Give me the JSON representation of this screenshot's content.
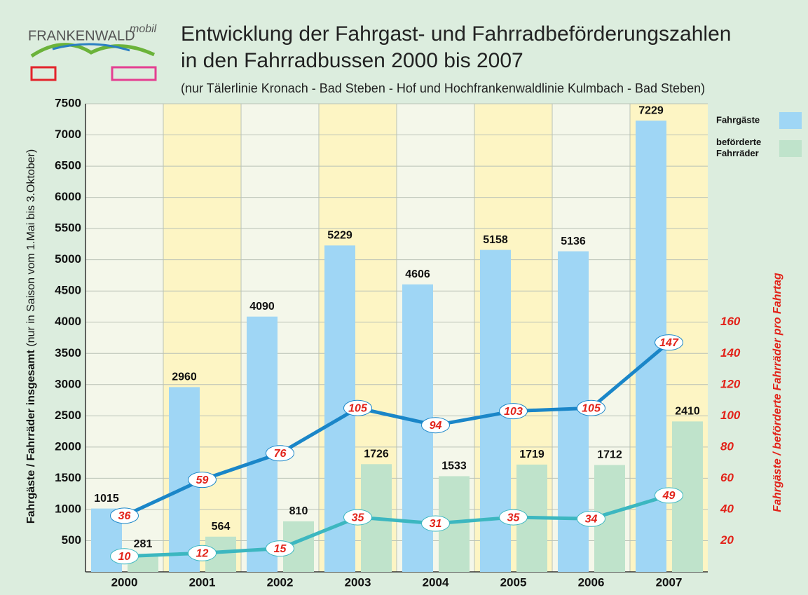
{
  "chart_data": {
    "type": "bar",
    "logo": {
      "name": "FRANKENWALD",
      "suffix": "mobil"
    },
    "title": "Entwicklung der Fahrgast- und Fahrradbeförderungszahlen",
    "title_line2": "in den Fahrradbussen 2000 bis 2007",
    "subtitle": "(nur Tälerlinie Kronach - Bad Steben - Hof und Hochfrankenwaldlinie Kulmbach - Bad Steben)",
    "ylabel": "Fahrgäste / Fahrräder insgesamt",
    "ylabel_note": "(nur in Saison vom 1.Mai bis 3.Oktober)",
    "y2label": "Fahrgäste / beförderte Fahrräder pro Fahrtag",
    "categories": [
      "2000",
      "2001",
      "2002",
      "2003",
      "2004",
      "2005",
      "2006",
      "2007"
    ],
    "ylim": [
      0,
      7500
    ],
    "yticks": [
      500,
      1000,
      1500,
      2000,
      2500,
      3000,
      3500,
      4000,
      4500,
      5000,
      5500,
      6000,
      6500,
      7000,
      7500
    ],
    "y2lim": [
      0,
      300
    ],
    "y2ticks": [
      20,
      40,
      60,
      80,
      100,
      120,
      140,
      160
    ],
    "grid": true,
    "legend": "right",
    "series": [
      {
        "name": "Fahrgäste",
        "color": "#9fd6f5",
        "values": [
          1015,
          2960,
          4090,
          5229,
          4606,
          5158,
          5136,
          7229
        ]
      },
      {
        "name": "beförderte Fahrräder",
        "color": "#bfe3cb",
        "values": [
          281,
          564,
          810,
          1726,
          1533,
          1719,
          1712,
          2410
        ]
      },
      {
        "type": "line",
        "axis": "y2",
        "color": "#1a86c8",
        "values": [
          36,
          59,
          76,
          105,
          94,
          103,
          105,
          147
        ]
      },
      {
        "type": "line",
        "axis": "y2",
        "color": "#3cb7c0",
        "values": [
          10,
          12,
          15,
          35,
          31,
          35,
          34,
          49
        ]
      }
    ]
  }
}
